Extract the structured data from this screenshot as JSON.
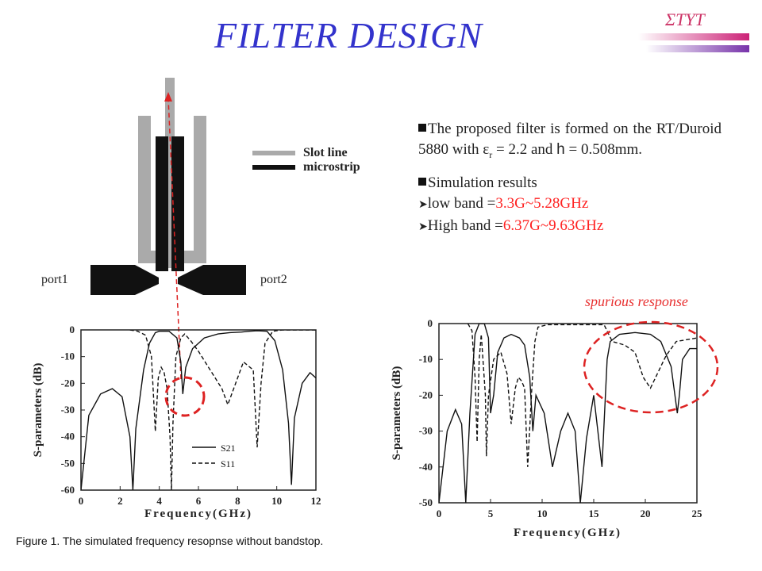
{
  "title": "FILTER DESIGN",
  "brand": "ΣΤΥΤ",
  "bullets": [
    {
      "parts": [
        {
          "text": "The proposed filter is formed on the RT/Duroid 5880 with ε",
          "style": ""
        },
        {
          "text": "r",
          "style": "sub"
        },
        {
          "text": " = 2.2 and ",
          "style": ""
        },
        {
          "text": "h",
          "style": "sans"
        },
        {
          "text": " = 0.508mm.",
          "style": ""
        }
      ]
    },
    {
      "text": "Simulation results"
    }
  ],
  "bands": [
    {
      "label": "low band =",
      "value": "3.3G~5.28GHz"
    },
    {
      "label": "High band =",
      "value": "6.37G~9.63GHz"
    }
  ],
  "spurious_label": "spurious response",
  "caption": "Figure 1. The simulated frequency resopnse without bandstop.",
  "layout_legend": {
    "slot_line": "Slot line",
    "microstrip": "microstrip"
  },
  "ports": {
    "port1": "port1",
    "port2": "port2"
  },
  "colors": {
    "title": "#3333cc",
    "accent_red": "#ff2222",
    "slot_gray": "#aaaaaa",
    "circle_red": "#dd2222"
  },
  "chart_data": [
    {
      "type": "line",
      "xlabel": "Frequency(GHz)",
      "ylabel": "S-parameters (dB)",
      "xlim": [
        0,
        12
      ],
      "ylim": [
        -60,
        0
      ],
      "xticks": [
        0,
        2,
        4,
        6,
        8,
        10,
        12
      ],
      "yticks": [
        0,
        -10,
        -20,
        -30,
        -40,
        -50,
        -60
      ],
      "legend": [
        "S21",
        "S11"
      ],
      "series": [
        {
          "name": "S21",
          "style": "solid",
          "x": [
            0,
            0.4,
            1.0,
            1.6,
            2.1,
            2.5,
            2.65,
            2.8,
            3.2,
            3.5,
            3.8,
            4.0,
            4.5,
            4.9,
            5.1,
            5.2,
            5.35,
            5.7,
            6.3,
            7.0,
            7.6,
            8.2,
            8.6,
            9.0,
            9.5,
            9.9,
            10.3,
            10.6,
            10.75,
            10.9,
            11.3,
            11.7,
            12
          ],
          "y": [
            -60,
            -32,
            -24,
            -22,
            -25,
            -40,
            -60,
            -37,
            -15,
            -5,
            -1,
            -0.5,
            -0.5,
            -3,
            -12,
            -24,
            -14,
            -7,
            -3,
            -1.5,
            -1,
            -0.8,
            -0.5,
            -0.3,
            -0.5,
            -4,
            -15,
            -35,
            -58,
            -33,
            -20,
            -16,
            -18
          ]
        },
        {
          "name": "S11",
          "style": "dashed",
          "x": [
            2.5,
            2.9,
            3.3,
            3.6,
            3.8,
            3.95,
            4.1,
            4.25,
            4.4,
            4.55,
            4.62,
            4.7,
            4.85,
            5.1,
            5.3,
            5.6,
            6.0,
            6.6,
            7.2,
            7.5,
            7.8,
            8.3,
            8.8,
            9.0,
            9.2,
            9.4,
            9.8,
            10.3,
            12
          ],
          "y": [
            0,
            -0.5,
            -2,
            -10,
            -38,
            -18,
            -14,
            -16,
            -22,
            -40,
            -60,
            -35,
            -10,
            -3,
            -1.5,
            -4,
            -8,
            -15,
            -22,
            -28,
            -22,
            -12,
            -15,
            -44,
            -20,
            -5,
            -0.5,
            0,
            0
          ]
        }
      ]
    },
    {
      "type": "line",
      "xlabel": "Frequency(GHz)",
      "ylabel": "S-parameters (dB)",
      "xlim": [
        0,
        25
      ],
      "ylim": [
        -50,
        0
      ],
      "xticks": [
        0,
        5,
        10,
        15,
        20,
        25
      ],
      "yticks": [
        0,
        -10,
        -20,
        -30,
        -40,
        -50
      ],
      "series": [
        {
          "name": "S21",
          "style": "solid",
          "x": [
            0,
            0.8,
            1.6,
            2.2,
            2.6,
            3.0,
            3.5,
            3.9,
            4.4,
            4.8,
            5.0,
            5.3,
            5.7,
            6.3,
            7.0,
            7.8,
            8.3,
            8.8,
            9.1,
            9.4,
            10.2,
            11,
            11.8,
            12.5,
            13.2,
            13.7,
            14.3,
            15,
            15.8,
            16.3,
            16.6,
            17.5,
            19,
            20.5,
            21.5,
            22.5,
            23.1,
            23.3,
            23.6,
            24.3,
            25
          ],
          "y": [
            -50,
            -30,
            -24,
            -28,
            -50,
            -25,
            -3,
            0,
            0,
            -4,
            -25,
            -20,
            -8,
            -4,
            -3,
            -4,
            -6,
            -15,
            -30,
            -20,
            -25,
            -40,
            -30,
            -25,
            -30,
            -50,
            -32,
            -20,
            -40,
            -10,
            -5,
            -3,
            -2.5,
            -3,
            -5,
            -12,
            -25,
            -20,
            -10,
            -7,
            -7
          ]
        },
        {
          "name": "S11",
          "style": "dashed",
          "x": [
            2.8,
            3.2,
            3.5,
            3.7,
            3.9,
            4.1,
            4.5,
            4.6,
            4.8,
            5.3,
            6.0,
            6.6,
            7.0,
            7.4,
            7.7,
            8.0,
            8.3,
            8.6,
            9.0,
            9.3,
            9.6,
            10.5,
            16.0,
            16.8,
            18.0,
            19.0,
            19.8,
            20.5,
            21.0,
            22.0,
            23.0,
            25
          ],
          "y": [
            0,
            -2,
            -15,
            -33,
            -10,
            -3,
            -20,
            -37,
            -20,
            -10,
            -8,
            -14,
            -28,
            -18,
            -15,
            -16,
            -18,
            -40,
            -18,
            -5,
            -1,
            -0.3,
            -0.3,
            -5,
            -6,
            -8,
            -15,
            -18,
            -15,
            -9,
            -5,
            -4
          ]
        }
      ]
    }
  ]
}
